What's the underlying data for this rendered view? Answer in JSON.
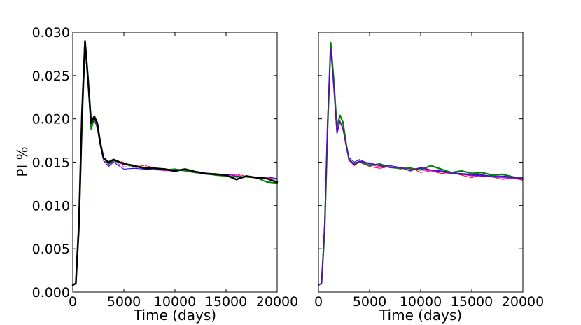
{
  "chart_data": [
    {
      "type": "line",
      "xlabel": "Time (days)",
      "ylabel": "PI %",
      "xlim": [
        0,
        20000
      ],
      "ylim": [
        0.0,
        0.03
      ],
      "xticks": [
        "0",
        "5000",
        "10000",
        "15000",
        "20000"
      ],
      "yticks": [
        "0.000",
        "0.005",
        "0.010",
        "0.015",
        "0.020",
        "0.025",
        "0.030"
      ],
      "grid": false,
      "series": [
        {
          "color": "#ff0000",
          "width": 1.0,
          "dashed": true,
          "x": [
            0,
            300,
            600,
            900,
            1200,
            1500,
            1800,
            2100,
            2400,
            2700,
            3000,
            3500,
            4000,
            5000,
            6000,
            7000,
            8000,
            9000,
            10000,
            11000,
            12000,
            13000,
            14000,
            15000,
            16000,
            17000,
            18000,
            19000,
            20000
          ],
          "y": [
            0.0008,
            0.001,
            0.008,
            0.02,
            0.0282,
            0.024,
            0.02,
            0.0198,
            0.019,
            0.017,
            0.0155,
            0.0148,
            0.0152,
            0.015,
            0.0145,
            0.0146,
            0.0144,
            0.014,
            0.0142,
            0.014,
            0.0138,
            0.0136,
            0.0137,
            0.0135,
            0.0136,
            0.0134,
            0.0133,
            0.0132,
            0.013
          ]
        },
        {
          "color": "#0000ff",
          "width": 1.0,
          "dashed": false,
          "x": [
            0,
            300,
            600,
            900,
            1200,
            1500,
            1800,
            2100,
            2400,
            2700,
            3000,
            3500,
            4000,
            5000,
            6000,
            7000,
            8000,
            9000,
            10000,
            11000,
            12000,
            13000,
            14000,
            15000,
            16000,
            17000,
            18000,
            19000,
            20000
          ],
          "y": [
            0.0008,
            0.001,
            0.008,
            0.02,
            0.0285,
            0.024,
            0.0195,
            0.02,
            0.0188,
            0.0168,
            0.0152,
            0.0145,
            0.015,
            0.0142,
            0.0143,
            0.0142,
            0.0141,
            0.0141,
            0.0139,
            0.0142,
            0.0138,
            0.0136,
            0.0135,
            0.0136,
            0.0134,
            0.0133,
            0.0132,
            0.0133,
            0.0131
          ]
        },
        {
          "color": "#ff00ff",
          "width": 1.0,
          "dashed": true,
          "x": [
            0,
            300,
            600,
            900,
            1200,
            1500,
            1800,
            2100,
            2400,
            2700,
            3000,
            3500,
            4000,
            5000,
            6000,
            7000,
            8000,
            9000,
            10000,
            11000,
            12000,
            13000,
            14000,
            15000,
            16000,
            17000,
            18000,
            19000,
            20000
          ],
          "y": [
            0.0008,
            0.001,
            0.008,
            0.02,
            0.0283,
            0.024,
            0.0198,
            0.0199,
            0.0189,
            0.0169,
            0.0153,
            0.0146,
            0.0151,
            0.0145,
            0.0144,
            0.0143,
            0.0142,
            0.014,
            0.014,
            0.0141,
            0.0138,
            0.0137,
            0.0136,
            0.0135,
            0.0135,
            0.0133,
            0.0132,
            0.0132,
            0.013
          ]
        },
        {
          "color": "#008000",
          "width": 2.0,
          "dashed": false,
          "x": [
            0,
            300,
            600,
            900,
            1200,
            1500,
            1800,
            2100,
            2400,
            2700,
            3000,
            3500,
            4000,
            5000,
            6000,
            7000,
            8000,
            9000,
            10000,
            11000,
            12000,
            13000,
            14000,
            15000,
            16000,
            17000,
            18000,
            19000,
            20000
          ],
          "y": [
            0.0008,
            0.001,
            0.007,
            0.019,
            0.0288,
            0.0242,
            0.0188,
            0.0201,
            0.0192,
            0.017,
            0.0155,
            0.0148,
            0.0152,
            0.0148,
            0.0145,
            0.0144,
            0.0143,
            0.0141,
            0.0142,
            0.014,
            0.0138,
            0.0137,
            0.0135,
            0.0134,
            0.0133,
            0.0133,
            0.0132,
            0.0127,
            0.0126
          ]
        },
        {
          "color": "#000000",
          "width": 2.5,
          "dashed": false,
          "x": [
            0,
            300,
            600,
            900,
            1200,
            1500,
            1800,
            2100,
            2400,
            2700,
            3000,
            3500,
            4000,
            5000,
            6000,
            7000,
            8000,
            9000,
            10000,
            11000,
            12000,
            13000,
            14000,
            15000,
            16000,
            17000,
            18000,
            19000,
            20000
          ],
          "y": [
            0.0008,
            0.001,
            0.008,
            0.0205,
            0.029,
            0.0245,
            0.0195,
            0.0203,
            0.0195,
            0.0172,
            0.0155,
            0.015,
            0.0153,
            0.0148,
            0.0146,
            0.0143,
            0.0143,
            0.0142,
            0.014,
            0.0142,
            0.0139,
            0.0137,
            0.0136,
            0.0135,
            0.013,
            0.0134,
            0.0132,
            0.0131,
            0.0127
          ]
        }
      ]
    },
    {
      "type": "line",
      "xlabel": "Time (days)",
      "ylabel": "",
      "xlim": [
        0,
        20000
      ],
      "ylim": [
        0.0,
        0.03
      ],
      "xticks": [
        "0",
        "5000",
        "10000",
        "15000",
        "20000"
      ],
      "yticks": [],
      "grid": false,
      "series": [
        {
          "color": "#ff0000",
          "width": 1.0,
          "dashed": false,
          "x": [
            0,
            300,
            600,
            900,
            1200,
            1500,
            1800,
            2100,
            2400,
            2700,
            3000,
            3500,
            4000,
            5000,
            6000,
            7000,
            8000,
            9000,
            10000,
            11000,
            12000,
            13000,
            14000,
            15000,
            16000,
            17000,
            18000,
            19000,
            20000
          ],
          "y": [
            0.0008,
            0.001,
            0.008,
            0.02,
            0.028,
            0.0238,
            0.0192,
            0.0198,
            0.0188,
            0.0168,
            0.0152,
            0.0146,
            0.015,
            0.0145,
            0.0143,
            0.0145,
            0.0142,
            0.0144,
            0.0138,
            0.014,
            0.0137,
            0.0138,
            0.0135,
            0.0132,
            0.0136,
            0.0133,
            0.013,
            0.0132,
            0.0129
          ]
        },
        {
          "color": "#0000ff",
          "width": 1.0,
          "dashed": false,
          "x": [
            0,
            300,
            600,
            900,
            1200,
            1500,
            1800,
            2100,
            2400,
            2700,
            3000,
            3500,
            4000,
            5000,
            6000,
            7000,
            8000,
            9000,
            10000,
            11000,
            12000,
            13000,
            14000,
            15000,
            16000,
            17000,
            18000,
            19000,
            20000
          ],
          "y": [
            0.0008,
            0.001,
            0.008,
            0.02,
            0.0282,
            0.0236,
            0.0182,
            0.0196,
            0.019,
            0.0172,
            0.0155,
            0.015,
            0.0153,
            0.0148,
            0.0147,
            0.0146,
            0.0144,
            0.0142,
            0.0143,
            0.0141,
            0.014,
            0.0138,
            0.0137,
            0.0136,
            0.0135,
            0.0134,
            0.0134,
            0.0133,
            0.0132
          ]
        },
        {
          "color": "#ff00ff",
          "width": 1.0,
          "dashed": false,
          "x": [
            0,
            300,
            600,
            900,
            1200,
            1500,
            1800,
            2100,
            2400,
            2700,
            3000,
            3500,
            4000,
            5000,
            6000,
            7000,
            8000,
            9000,
            10000,
            11000,
            12000,
            13000,
            14000,
            15000,
            16000,
            17000,
            18000,
            19000,
            20000
          ],
          "y": [
            0.0008,
            0.001,
            0.008,
            0.02,
            0.0281,
            0.0237,
            0.0186,
            0.0197,
            0.0189,
            0.017,
            0.0154,
            0.0148,
            0.0151,
            0.0147,
            0.0145,
            0.0145,
            0.0143,
            0.0142,
            0.0141,
            0.014,
            0.0139,
            0.0137,
            0.0136,
            0.0134,
            0.0134,
            0.0133,
            0.0132,
            0.0131,
            0.013
          ]
        },
        {
          "color": "#008000",
          "width": 2.2,
          "dashed": false,
          "x": [
            0,
            300,
            600,
            900,
            1200,
            1500,
            1800,
            2100,
            2400,
            2700,
            3000,
            3500,
            4000,
            5000,
            6000,
            7000,
            8000,
            9000,
            10000,
            11000,
            12000,
            13000,
            14000,
            15000,
            16000,
            17000,
            18000,
            19000,
            20000
          ],
          "y": [
            0.0008,
            0.001,
            0.007,
            0.019,
            0.0288,
            0.0244,
            0.019,
            0.0204,
            0.0196,
            0.0172,
            0.0152,
            0.0148,
            0.0151,
            0.0146,
            0.0148,
            0.0144,
            0.0143,
            0.0143,
            0.0141,
            0.0146,
            0.0142,
            0.0138,
            0.014,
            0.0137,
            0.0138,
            0.0135,
            0.0136,
            0.0133,
            0.0131
          ]
        },
        {
          "color": "#6600cc",
          "width": 1.5,
          "dashed": false,
          "x": [
            0,
            300,
            600,
            900,
            1200,
            1500,
            1800,
            2100,
            2400,
            2700,
            3000,
            3500,
            4000,
            5000,
            6000,
            7000,
            8000,
            9000,
            10000,
            11000,
            12000,
            13000,
            14000,
            15000,
            16000,
            17000,
            18000,
            19000,
            20000
          ],
          "y": [
            0.0008,
            0.001,
            0.008,
            0.02,
            0.0281,
            0.0236,
            0.0184,
            0.0197,
            0.0188,
            0.017,
            0.0153,
            0.0147,
            0.0151,
            0.0149,
            0.0146,
            0.0144,
            0.0144,
            0.014,
            0.0144,
            0.0141,
            0.0139,
            0.0137,
            0.0136,
            0.0135,
            0.0134,
            0.0133,
            0.0133,
            0.0132,
            0.0131
          ]
        }
      ]
    }
  ]
}
